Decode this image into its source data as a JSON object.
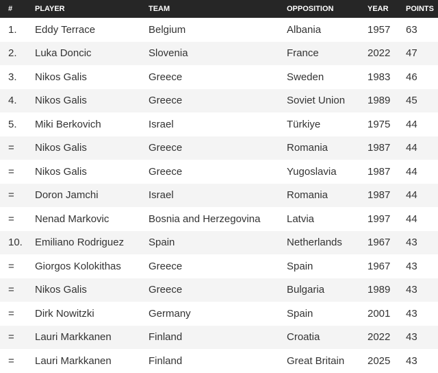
{
  "headers": [
    "#",
    "PLAYER",
    "TEAM",
    "OPPOSITION",
    "YEAR",
    "POINTS"
  ],
  "rows": [
    [
      "1.",
      "Eddy Terrace",
      "Belgium",
      "Albania",
      "1957",
      "63"
    ],
    [
      "2.",
      "Luka Doncic",
      "Slovenia",
      "France",
      "2022",
      "47"
    ],
    [
      "3.",
      "Nikos Galis",
      "Greece",
      "Sweden",
      "1983",
      "46"
    ],
    [
      "4.",
      "Nikos Galis",
      "Greece",
      "Soviet Union",
      "1989",
      "45"
    ],
    [
      "5.",
      "Miki Berkovich",
      "Israel",
      "Türkiye",
      "1975",
      "44"
    ],
    [
      "=",
      "Nikos Galis",
      "Greece",
      "Romania",
      "1987",
      "44"
    ],
    [
      "=",
      "Nikos Galis",
      "Greece",
      "Yugoslavia",
      "1987",
      "44"
    ],
    [
      "=",
      "Doron Jamchi",
      "Israel",
      "Romania",
      "1987",
      "44"
    ],
    [
      "=",
      "Nenad Markovic",
      "Bosnia and Herzegovina",
      "Latvia",
      "1997",
      "44"
    ],
    [
      "10.",
      "Emiliano Rodriguez",
      "Spain",
      "Netherlands",
      "1967",
      "43"
    ],
    [
      "=",
      "Giorgos Kolokithas",
      "Greece",
      "Spain",
      "1967",
      "43"
    ],
    [
      "=",
      "Nikos Galis",
      "Greece",
      "Bulgaria",
      "1989",
      "43"
    ],
    [
      "=",
      "Dirk Nowitzki",
      "Germany",
      "Spain",
      "2001",
      "43"
    ],
    [
      "=",
      "Lauri Markkanen",
      "Finland",
      "Croatia",
      "2022",
      "43"
    ],
    [
      "=",
      "Lauri Markkanen",
      "Finland",
      "Great Britain",
      "2025",
      "43"
    ]
  ]
}
